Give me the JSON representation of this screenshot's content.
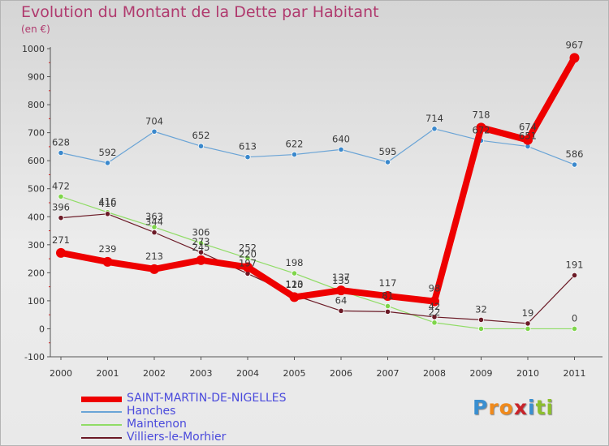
{
  "title": "Evolution du Montant de la Dette par Habitant",
  "unit_label": "(en €)",
  "logo": {
    "letters": [
      "P",
      "r",
      "o",
      "x",
      "i",
      "t",
      "i"
    ],
    "colors": [
      "#3a8fd0",
      "#f08a1c",
      "#f08a1c",
      "#c8232a",
      "#3a8fd0",
      "#8dbf2e",
      "#8dbf2e"
    ]
  },
  "chart_data": {
    "type": "line",
    "title": "Evolution du Montant de la Dette par Habitant",
    "ylabel": "(en €)",
    "xlabel": "",
    "x": [
      "2000",
      "2001",
      "2002",
      "2003",
      "2004",
      "2005",
      "2006",
      "2007",
      "2008",
      "2009",
      "2010",
      "2011"
    ],
    "ylim": [
      -100,
      1000
    ],
    "yticks": [
      -100,
      0,
      100,
      200,
      300,
      400,
      500,
      600,
      700,
      800,
      900,
      1000
    ],
    "grid": false,
    "legend_position": "bottom",
    "series": [
      {
        "name": "SAINT-MARTIN-DE-NIGELLES",
        "color": "#ee0000",
        "point_color": "#ee0000",
        "values": [
          271,
          239,
          213,
          245,
          220,
          113,
          137,
          117,
          98,
          718,
          674,
          967
        ],
        "labels": [
          "271",
          "239",
          "213",
          "245",
          "220",
          "113",
          "137",
          "117",
          "98",
          "718",
          "674",
          "967"
        ]
      },
      {
        "name": "Hanches",
        "color": "#6aa4d6",
        "point_color": "#3a88cc",
        "values": [
          628,
          592,
          704,
          652,
          613,
          622,
          640,
          595,
          714,
          672,
          651,
          586
        ],
        "labels": [
          "628",
          "592",
          "704",
          "652",
          "613",
          "622",
          "640",
          "595",
          "714",
          "672",
          "651",
          "586"
        ]
      },
      {
        "name": "Maintenon",
        "color": "#90dc66",
        "point_color": "#7ed54a",
        "values": [
          472,
          416,
          363,
          306,
          252,
          198,
          135,
          81,
          22,
          0,
          0,
          0
        ],
        "labels": [
          "472",
          "416",
          "363",
          "306",
          "252",
          "198",
          "135",
          "81",
          "22",
          "",
          "",
          "0"
        ]
      },
      {
        "name": "Villiers-le-Morhier",
        "color": "#6b1a26",
        "point_color": "#6b1a26",
        "values": [
          396,
          410,
          344,
          273,
          197,
          120,
          64,
          61,
          42,
          32,
          19,
          191
        ],
        "labels": [
          "396",
          "410",
          "344",
          "273",
          "197",
          "120",
          "64",
          "",
          "42",
          "32",
          "19",
          "191"
        ]
      }
    ]
  }
}
